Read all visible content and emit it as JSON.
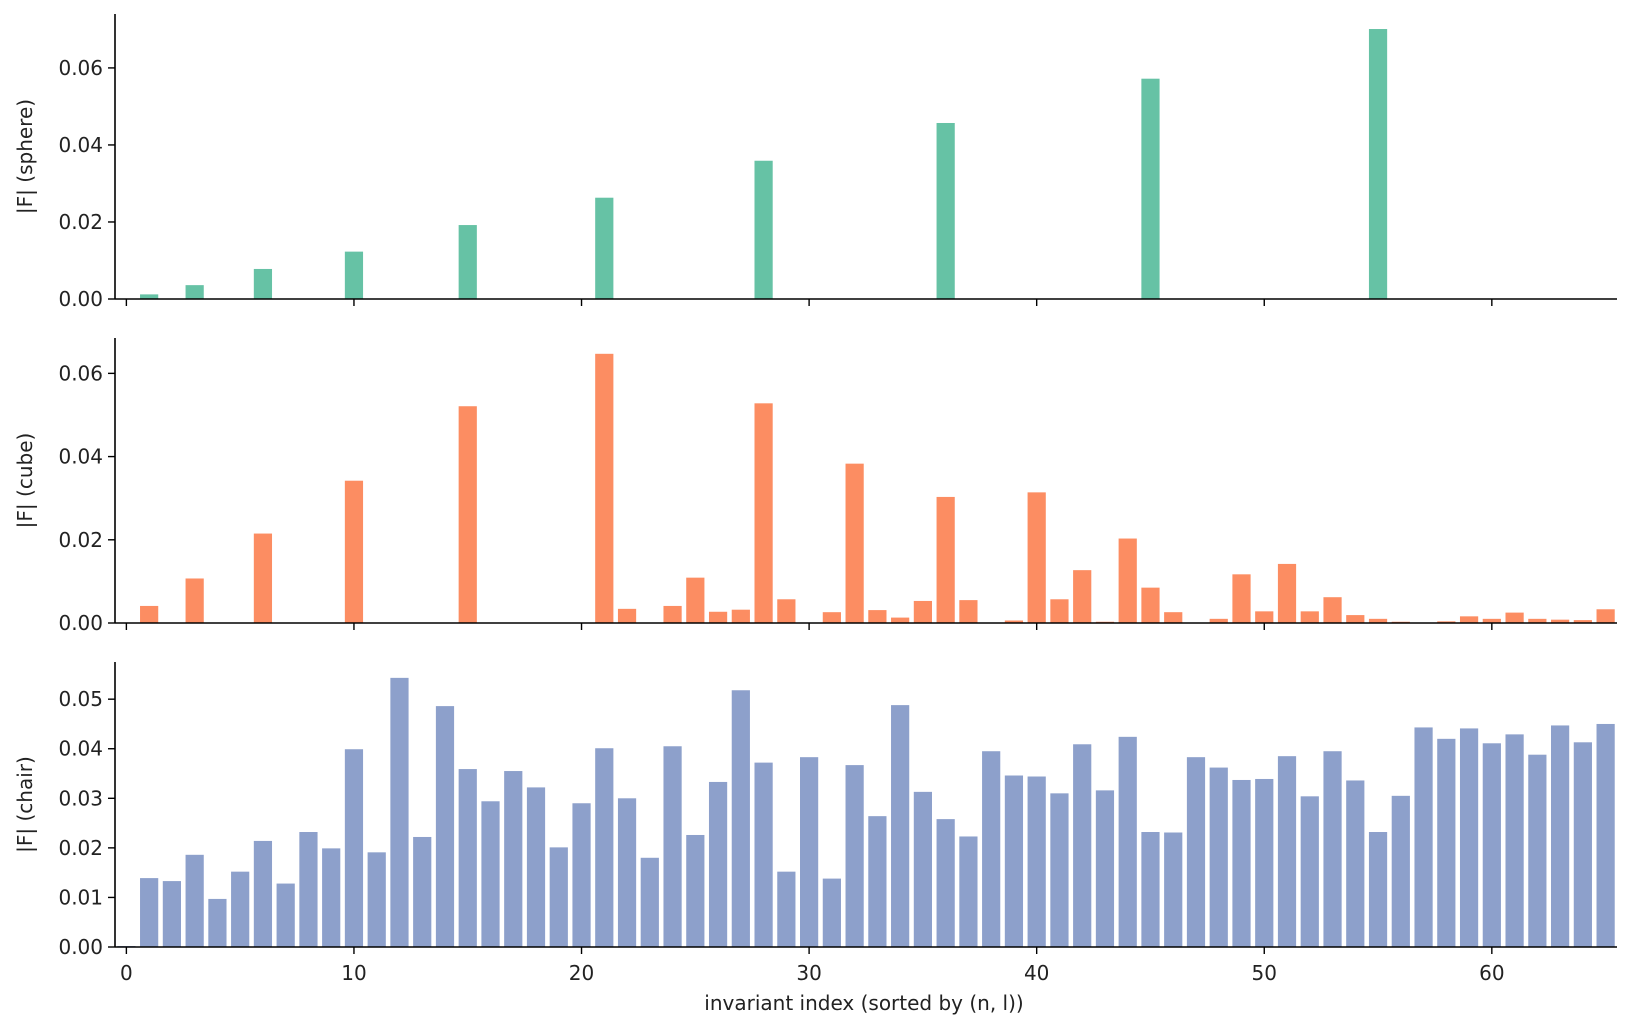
{
  "chart_data": [
    {
      "type": "bar",
      "panel": "sphere",
      "ylabel": "|F| (sphere)",
      "xlim": [
        -0.5,
        65.5
      ],
      "ylim": [
        0,
        0.074
      ],
      "yticks": [
        "0.00",
        "0.02",
        "0.04",
        "0.06"
      ],
      "ytick_values": [
        0,
        0.02,
        0.04,
        0.06
      ],
      "color": "#66c2a5",
      "x": [
        1,
        3,
        6,
        10,
        15,
        21,
        28,
        36,
        45,
        55
      ],
      "values": [
        0.0012,
        0.0036,
        0.0078,
        0.0123,
        0.0192,
        0.0263,
        0.0359,
        0.0457,
        0.0572,
        0.0701
      ]
    },
    {
      "type": "bar",
      "panel": "cube",
      "ylabel": "|F| (cube)",
      "xlim": [
        -0.5,
        65.5
      ],
      "ylim": [
        0,
        0.0685
      ],
      "yticks": [
        "0.00",
        "0.02",
        "0.04",
        "0.06"
      ],
      "ytick_values": [
        0,
        0.02,
        0.04,
        0.06
      ],
      "color": "#fc8d62",
      "x": [
        1,
        3,
        6,
        10,
        15,
        21,
        22,
        24,
        25,
        26,
        27,
        28,
        29,
        31,
        32,
        33,
        34,
        35,
        36,
        37,
        39,
        40,
        41,
        42,
        43,
        44,
        45,
        46,
        48,
        49,
        50,
        51,
        52,
        53,
        54,
        55,
        56,
        58,
        59,
        60,
        61,
        62,
        63,
        64,
        65
      ],
      "values": [
        0.0041,
        0.0107,
        0.0215,
        0.0342,
        0.0521,
        0.0647,
        0.0034,
        0.0041,
        0.0109,
        0.0027,
        0.0032,
        0.0528,
        0.0057,
        0.0026,
        0.0383,
        0.0031,
        0.0013,
        0.0053,
        0.0303,
        0.0055,
        0.0006,
        0.0314,
        0.0057,
        0.0127,
        0.0003,
        0.0203,
        0.0085,
        0.0026,
        0.001,
        0.0117,
        0.0028,
        0.0142,
        0.0028,
        0.0062,
        0.0019,
        0.001,
        0.0003,
        0.0004,
        0.0016,
        0.001,
        0.0025,
        0.001,
        0.0008,
        0.0007,
        0.0033
      ]
    },
    {
      "type": "bar",
      "panel": "chair",
      "ylabel": "|F| (chair)",
      "xlabel": "invariant index (sorted by (n, l))",
      "xlim": [
        -0.5,
        65.5
      ],
      "ylim": [
        0,
        0.0575
      ],
      "yticks": [
        "0.00",
        "0.01",
        "0.02",
        "0.03",
        "0.04",
        "0.05"
      ],
      "ytick_values": [
        0,
        0.01,
        0.02,
        0.03,
        0.04,
        0.05
      ],
      "xticks": [
        "0",
        "10",
        "20",
        "30",
        "40",
        "50",
        "60"
      ],
      "xtick_values": [
        0,
        10,
        20,
        30,
        40,
        50,
        60
      ],
      "color": "#8da0cb",
      "x": [
        0,
        1,
        2,
        3,
        4,
        5,
        6,
        7,
        8,
        9,
        10,
        11,
        12,
        13,
        14,
        15,
        16,
        17,
        18,
        19,
        20,
        21,
        22,
        23,
        24,
        25,
        26,
        27,
        28,
        29,
        30,
        31,
        32,
        33,
        34,
        35,
        36,
        37,
        38,
        39,
        40,
        41,
        42,
        43,
        44,
        45,
        46,
        47,
        48,
        49,
        50,
        51,
        52,
        53,
        54,
        55,
        56,
        57,
        58,
        59,
        60,
        61,
        62,
        63,
        64,
        65
      ],
      "values": [
        0.0002,
        0.0139,
        0.0133,
        0.0186,
        0.0097,
        0.0152,
        0.0214,
        0.0128,
        0.0232,
        0.0199,
        0.0399,
        0.0191,
        0.0543,
        0.0222,
        0.0486,
        0.0359,
        0.0294,
        0.0355,
        0.0322,
        0.0201,
        0.029,
        0.0401,
        0.03,
        0.018,
        0.0405,
        0.0226,
        0.0333,
        0.0518,
        0.0372,
        0.0152,
        0.0383,
        0.0138,
        0.0367,
        0.0264,
        0.0488,
        0.0313,
        0.0258,
        0.0223,
        0.0395,
        0.0346,
        0.0344,
        0.031,
        0.0409,
        0.0316,
        0.0424,
        0.0232,
        0.0231,
        0.0383,
        0.0362,
        0.0337,
        0.0339,
        0.0385,
        0.0304,
        0.0395,
        0.0336,
        0.0232,
        0.0305,
        0.0443,
        0.042,
        0.0441,
        0.0411,
        0.0429,
        0.0388,
        0.0447,
        0.0413,
        0.045
      ]
    }
  ]
}
